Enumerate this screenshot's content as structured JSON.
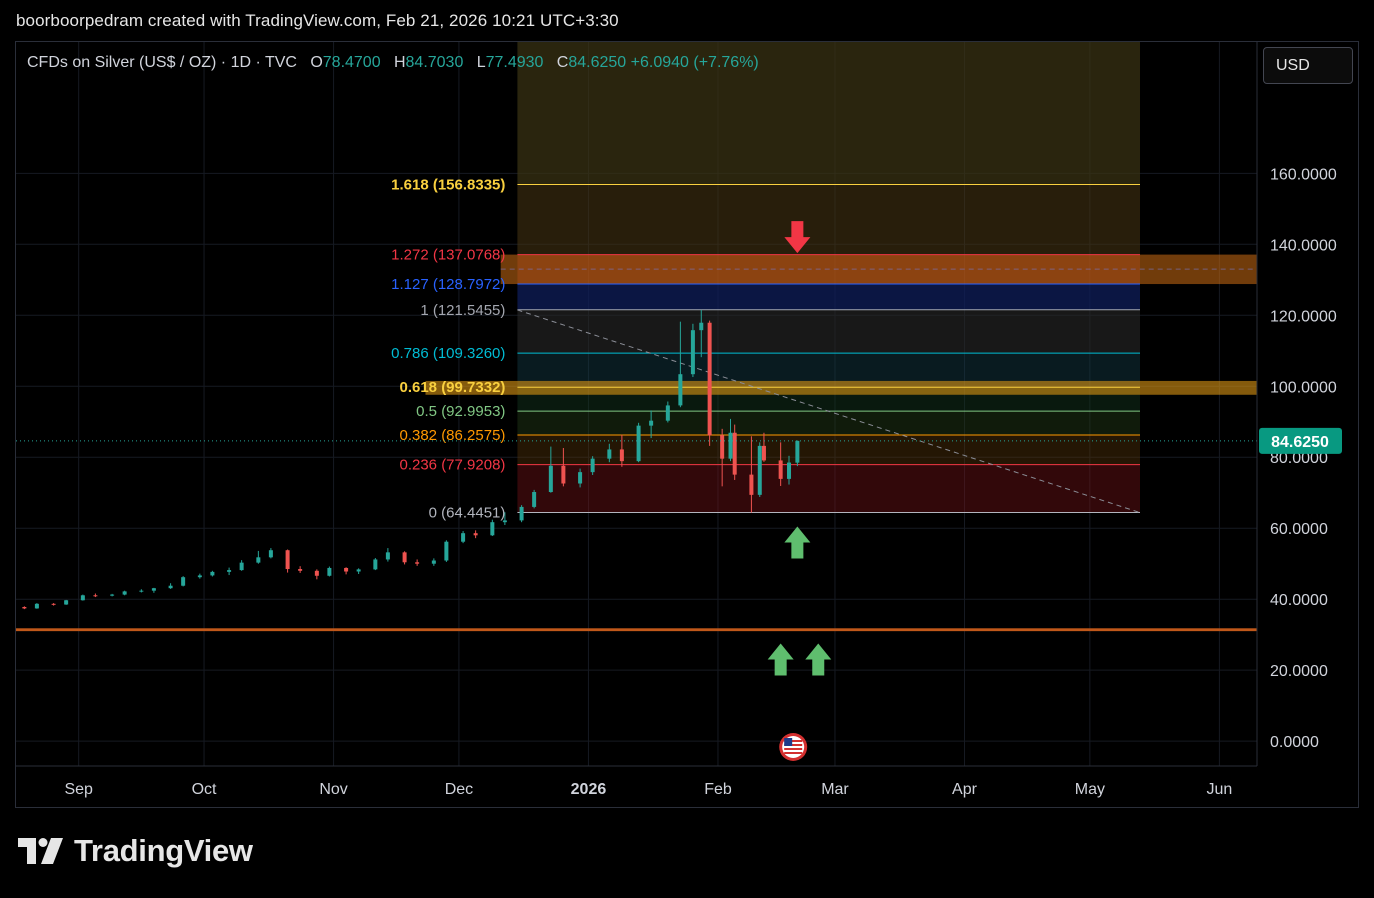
{
  "header": {
    "text": "boorboorpedram created with TradingView.com, Feb 21, 2026 10:21 UTC+3:30"
  },
  "legend": {
    "symbol": "CFDs on Silver (US$ / OZ) · 1D · TVC",
    "o_label": "O",
    "o": "78.4700",
    "h_label": "H",
    "h": "84.7030",
    "l_label": "L",
    "l": "77.4930",
    "c_label": "C",
    "c": "84.6250",
    "change": "+6.0940 (+7.76%)"
  },
  "toolbar": {
    "currency": "USD"
  },
  "brand": {
    "name": "TradingView",
    "logo_icon": "tradingview-logo-icon"
  },
  "colors": {
    "up": "#26a69a",
    "down": "#ef5350",
    "background": "#000000",
    "price_label_bg": "#089981"
  },
  "chart_data": {
    "type": "candlestick",
    "y_axis": {
      "range": [
        -7,
        197
      ],
      "ticks": [
        "0.0000",
        "20.0000",
        "40.0000",
        "60.0000",
        "80.0000",
        "100.0000",
        "120.0000",
        "140.0000",
        "160.0000"
      ]
    },
    "x_axis": {
      "range": [
        "2025-08-17",
        "2026-06-10"
      ],
      "ticks": [
        {
          "date": "2025-09-01",
          "label": "Sep"
        },
        {
          "date": "2025-10-01",
          "label": "Oct"
        },
        {
          "date": "2025-11-01",
          "label": "Nov"
        },
        {
          "date": "2025-12-01",
          "label": "Dec"
        },
        {
          "date": "2026-01-01",
          "label": "2026"
        },
        {
          "date": "2026-02-01",
          "label": "Feb"
        },
        {
          "date": "2026-03-01",
          "label": "Mar"
        },
        {
          "date": "2026-04-01",
          "label": "Apr"
        },
        {
          "date": "2026-05-01",
          "label": "May"
        },
        {
          "date": "2026-06-01",
          "label": "Jun"
        }
      ]
    },
    "last_price": "84.6250",
    "candles": [
      [
        "2025-08-15",
        37.9,
        38.1,
        37.6,
        37.8
      ],
      [
        "2025-08-19",
        37.8,
        38.0,
        37.2,
        37.4
      ],
      [
        "2025-08-22",
        37.4,
        38.9,
        37.3,
        38.7
      ],
      [
        "2025-08-26",
        38.7,
        38.9,
        38.2,
        38.5
      ],
      [
        "2025-08-29",
        38.5,
        39.8,
        38.4,
        39.7
      ],
      [
        "2025-09-02",
        39.7,
        41.3,
        39.6,
        41.1
      ],
      [
        "2025-09-05",
        41.1,
        41.6,
        40.6,
        41.0
      ],
      [
        "2025-09-09",
        41.0,
        41.5,
        40.8,
        41.3
      ],
      [
        "2025-09-12",
        41.3,
        42.4,
        41.1,
        42.2
      ],
      [
        "2025-09-16",
        42.2,
        42.8,
        41.9,
        42.4
      ],
      [
        "2025-09-19",
        42.4,
        43.2,
        41.8,
        43.1
      ],
      [
        "2025-09-23",
        43.1,
        44.5,
        42.9,
        43.8
      ],
      [
        "2025-09-26",
        43.8,
        46.5,
        43.6,
        46.2
      ],
      [
        "2025-09-30",
        46.2,
        47.2,
        45.8,
        46.7
      ],
      [
        "2025-10-03",
        46.7,
        48.0,
        46.4,
        47.7
      ],
      [
        "2025-10-07",
        47.7,
        48.9,
        46.8,
        48.2
      ],
      [
        "2025-10-10",
        48.2,
        51.0,
        48.0,
        50.3
      ],
      [
        "2025-10-14",
        50.3,
        53.6,
        50.0,
        51.8
      ],
      [
        "2025-10-17",
        51.8,
        54.4,
        51.5,
        53.8
      ],
      [
        "2025-10-21",
        53.8,
        54.0,
        47.5,
        48.5
      ],
      [
        "2025-10-24",
        48.5,
        49.3,
        47.4,
        48.0
      ],
      [
        "2025-10-28",
        48.0,
        48.4,
        45.6,
        46.6
      ],
      [
        "2025-10-31",
        46.6,
        49.2,
        46.4,
        48.8
      ],
      [
        "2025-11-04",
        48.8,
        49.0,
        47.0,
        47.8
      ],
      [
        "2025-11-07",
        47.8,
        48.7,
        47.1,
        48.4
      ],
      [
        "2025-11-11",
        48.4,
        51.6,
        48.2,
        51.2
      ],
      [
        "2025-11-14",
        51.2,
        54.4,
        50.6,
        53.2
      ],
      [
        "2025-11-18",
        53.2,
        53.5,
        49.8,
        50.4
      ],
      [
        "2025-11-21",
        50.4,
        51.2,
        49.4,
        50.0
      ],
      [
        "2025-11-25",
        50.0,
        51.5,
        49.4,
        50.9
      ],
      [
        "2025-11-28",
        50.9,
        56.6,
        50.5,
        56.2
      ],
      [
        "2025-12-02",
        56.2,
        59.2,
        55.8,
        58.6
      ],
      [
        "2025-12-05",
        58.6,
        59.4,
        57.2,
        58.0
      ],
      [
        "2025-12-09",
        58.0,
        62.4,
        57.8,
        61.7
      ],
      [
        "2025-12-12",
        61.7,
        64.5,
        60.9,
        62.2
      ],
      [
        "2025-12-16",
        62.2,
        66.5,
        61.7,
        66.0
      ],
      [
        "2025-12-19",
        66.0,
        70.8,
        65.6,
        70.2
      ],
      [
        "2025-12-23",
        70.2,
        83.0,
        70.0,
        77.6
      ],
      [
        "2025-12-26",
        77.6,
        82.6,
        71.8,
        72.6
      ],
      [
        "2025-12-30",
        72.6,
        76.8,
        71.5,
        75.8
      ],
      [
        "2026-01-02",
        75.8,
        80.3,
        75.0,
        79.6
      ],
      [
        "2026-01-06",
        79.6,
        83.8,
        78.6,
        82.2
      ],
      [
        "2026-01-09",
        82.2,
        86.3,
        77.3,
        78.9
      ],
      [
        "2026-01-13",
        78.9,
        89.7,
        78.6,
        88.9
      ],
      [
        "2026-01-16",
        88.9,
        93.2,
        85.4,
        90.3
      ],
      [
        "2026-01-20",
        90.3,
        95.7,
        89.8,
        94.6
      ],
      [
        "2026-01-23",
        94.6,
        118.2,
        94.1,
        103.4
      ],
      [
        "2026-01-26",
        103.4,
        117.6,
        102.6,
        115.8
      ],
      [
        "2026-01-28",
        115.8,
        121.5,
        108.2,
        117.9
      ],
      [
        "2026-01-30",
        117.9,
        118.5,
        83.2,
        86.2
      ],
      [
        "2026-02-02",
        86.2,
        88.0,
        71.8,
        79.6
      ],
      [
        "2026-02-04",
        79.6,
        90.8,
        78.9,
        86.9
      ],
      [
        "2026-02-05",
        86.9,
        89.2,
        73.6,
        75.1
      ],
      [
        "2026-02-09",
        75.1,
        85.9,
        64.4,
        69.4
      ],
      [
        "2026-02-11",
        69.4,
        84.2,
        68.8,
        83.2
      ],
      [
        "2026-02-12",
        83.2,
        86.9,
        78.7,
        79.1
      ],
      [
        "2026-02-16",
        79.1,
        84.2,
        71.9,
        73.9
      ],
      [
        "2026-02-18",
        73.9,
        80.4,
        72.3,
        78.5
      ],
      [
        "2026-02-20",
        78.47,
        84.703,
        77.493,
        84.625
      ]
    ]
  },
  "fib": {
    "start_date": "2025-12-15",
    "end_date": "2026-05-13",
    "levels": [
      {
        "ratio": "0",
        "price": "64.4451",
        "value": 64.4451,
        "text": "0 (64.4451)",
        "color": "#b2b5be",
        "fill": "rgba(120,20,25,0.42)"
      },
      {
        "ratio": "0.236",
        "price": "77.9208",
        "value": 77.9208,
        "text": "0.236 (77.9208)",
        "color": "#f23645",
        "fill": "rgba(90,55,10,0.40)"
      },
      {
        "ratio": "0.382",
        "price": "86.2575",
        "value": 86.2575,
        "text": "0.382 (86.2575)",
        "color": "#ff9800",
        "fill": "rgba(35,60,25,0.45)"
      },
      {
        "ratio": "0.5",
        "price": "92.9953",
        "value": 92.9953,
        "text": "0.5 (92.9953)",
        "color": "#81c784",
        "fill": "rgba(20,55,30,0.45)"
      },
      {
        "ratio": "0.618",
        "price": "99.7332",
        "value": 99.7332,
        "text": "0.618 (99.7332)",
        "color": "#f9d03f",
        "fill": "rgba(20,60,70,0.45)"
      },
      {
        "ratio": "0.786",
        "price": "109.3260",
        "value": 109.326,
        "text": "0.786 (109.3260)",
        "color": "#00bcd4",
        "fill": "rgba(40,40,40,0.60)"
      },
      {
        "ratio": "1",
        "price": "121.5455",
        "value": 121.5455,
        "text": "1 (121.5455)",
        "color": "#a3a6af",
        "fill": "rgba(15,30,90,0.75)"
      },
      {
        "ratio": "1.127",
        "price": "128.7972",
        "value": 128.7972,
        "text": "1.127 (128.7972)",
        "color": "#2962ff",
        "fill": "rgba(110,30,25,0.55)"
      },
      {
        "ratio": "1.272",
        "price": "137.0768",
        "value": 137.0768,
        "text": "1.272 (137.0768)",
        "color": "#f23645",
        "fill": "rgba(72,55,20,0.55)"
      },
      {
        "ratio": "1.618",
        "price": "156.8335",
        "value": 156.8335,
        "text": "1.618 (156.8335)",
        "color": "#f9d03f",
        "fill": "rgba(60,52,20,0.70)"
      }
    ],
    "top_value": 197
  },
  "zones": [
    {
      "name": "resistance-zone",
      "low": 128.8,
      "high": 137.1,
      "from_date": "2025-12-11",
      "color": "rgba(205,110,20,0.55)",
      "dashed_mid": 133.0
    },
    {
      "name": "golden-zone",
      "low": 97.6,
      "high": 101.5,
      "from_date": "2025-11-23",
      "color": "rgba(220,150,20,0.60)"
    },
    {
      "name": "support-line",
      "low": 31.0,
      "high": 31.8,
      "from_date": "2025-08-15",
      "color": "#c0581a"
    }
  ],
  "trend_line": {
    "from": [
      "2025-12-15",
      121.5
    ],
    "to": [
      "2026-05-13",
      64.4
    ],
    "color": "#8a8d96"
  },
  "arrows": [
    {
      "name": "red-down-arrow",
      "date": "2026-02-20",
      "value": 137.5,
      "dir": "down",
      "color": "#f23645"
    },
    {
      "name": "green-up-arrow",
      "date": "2026-02-20",
      "value": 60.5,
      "dir": "up",
      "color": "#5fbe6e"
    },
    {
      "name": "green-up-arrow-2",
      "date": "2026-02-16",
      "value": 27.5,
      "dir": "up",
      "color": "#5fbe6e"
    },
    {
      "name": "green-up-arrow-3",
      "date": "2026-02-25",
      "value": 27.5,
      "dir": "up",
      "color": "#5fbe6e"
    }
  ],
  "events": [
    {
      "name": "us-flag-icon",
      "date": "2026-02-19"
    }
  ]
}
